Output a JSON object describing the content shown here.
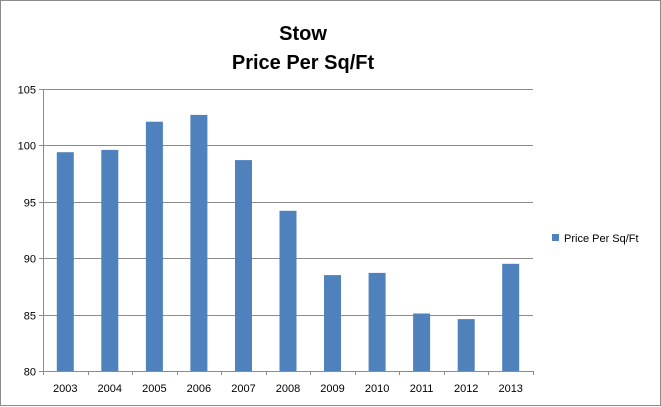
{
  "chart_data": {
    "type": "bar",
    "title": [
      "Stow",
      "Price Per Sq/Ft"
    ],
    "categories": [
      "2003",
      "2004",
      "2005",
      "2006",
      "2007",
      "2008",
      "2009",
      "2010",
      "2011",
      "2012",
      "2013"
    ],
    "series": [
      {
        "name": "Price Per Sq/Ft",
        "color": "#4f81bd",
        "values": [
          99.4,
          99.6,
          102.1,
          102.7,
          98.7,
          94.2,
          88.5,
          88.7,
          85.1,
          84.6,
          89.5
        ]
      }
    ],
    "ylim": [
      80,
      105
    ],
    "yticks": [
      "80",
      "85",
      "90",
      "95",
      "100",
      "105"
    ],
    "grid": true,
    "legend_position": "right"
  }
}
